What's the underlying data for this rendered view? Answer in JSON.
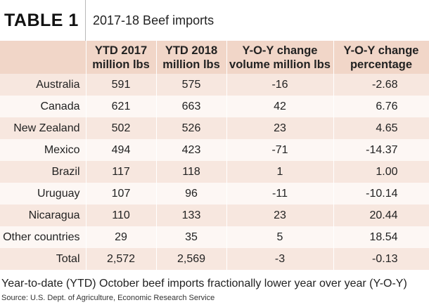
{
  "header": {
    "badge": "TABLE 1",
    "title": "2017-18 Beef imports"
  },
  "table": {
    "columns": [
      {
        "line1": "",
        "line2": ""
      },
      {
        "line1": "YTD 2017",
        "line2": "million lbs"
      },
      {
        "line1": "YTD 2018",
        "line2": "million lbs"
      },
      {
        "line1": "Y-O-Y change",
        "line2": "volume million lbs"
      },
      {
        "line1": "Y-O-Y change",
        "line2": "percentage"
      }
    ],
    "rows": [
      {
        "country": "Australia",
        "ytd2017": "591",
        "ytd2018": "575",
        "change": "-16",
        "pct": "-2.68"
      },
      {
        "country": "Canada",
        "ytd2017": "621",
        "ytd2018": "663",
        "change": "42",
        "pct": "6.76"
      },
      {
        "country": "New Zealand",
        "ytd2017": "502",
        "ytd2018": "526",
        "change": "23",
        "pct": "4.65"
      },
      {
        "country": "Mexico",
        "ytd2017": "494",
        "ytd2018": "423",
        "change": "-71",
        "pct": "-14.37"
      },
      {
        "country": "Brazil",
        "ytd2017": "117",
        "ytd2018": "118",
        "change": "1",
        "pct": "1.00"
      },
      {
        "country": "Uruguay",
        "ytd2017": "107",
        "ytd2018": "96",
        "change": "-11",
        "pct": "-10.14"
      },
      {
        "country": "Nicaragua",
        "ytd2017": "110",
        "ytd2018": "133",
        "change": "23",
        "pct": "20.44"
      },
      {
        "country": "Other countries",
        "ytd2017": "29",
        "ytd2018": "35",
        "change": "5",
        "pct": "18.54"
      },
      {
        "country": "Total",
        "ytd2017": "2,572",
        "ytd2018": "2,569",
        "change": "-3",
        "pct": "-0.13"
      }
    ]
  },
  "caption": "Year-to-date (YTD) October beef imports fractionally lower year over year (Y-O-Y)",
  "source": "Source: U.S. Dept. of Agriculture, Economic Research Service",
  "colors": {
    "header_band": "#f1d6c8",
    "row_dark": "#f7e7df",
    "row_light": "#fdf7f4"
  }
}
